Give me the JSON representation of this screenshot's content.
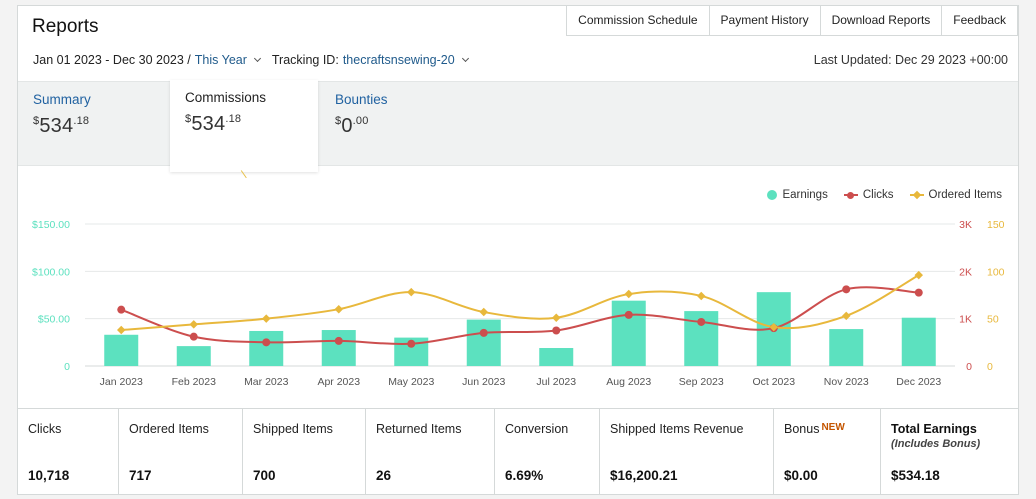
{
  "header": {
    "title": "Reports",
    "tabs": [
      "Commission Schedule",
      "Payment History",
      "Download Reports",
      "Feedback"
    ]
  },
  "filters": {
    "date_range": "Jan 01 2023 - Dec 30 2023 /",
    "period": "This Year",
    "tracking_label": "Tracking ID:",
    "tracking_id": "thecraftsnsewing-20",
    "last_updated": "Last Updated: Dec 29 2023 +00:00"
  },
  "summary": {
    "tabs": [
      {
        "label": "Summary",
        "currency": "$",
        "whole": "534",
        "cents": ".18"
      },
      {
        "label": "Commissions",
        "currency": "$",
        "whole": "534",
        "cents": ".18"
      },
      {
        "label": "Bounties",
        "currency": "$",
        "whole": "0",
        "cents": ".00"
      }
    ]
  },
  "chart_data": {
    "type": "bar",
    "categories": [
      "Jan 2023",
      "Feb 2023",
      "Mar 2023",
      "Apr 2023",
      "May 2023",
      "Jun 2023",
      "Jul 2023",
      "Aug 2023",
      "Sep 2023",
      "Oct 2023",
      "Nov 2023",
      "Dec 2023"
    ],
    "y_left_ticks": [
      "0",
      "$50.00",
      "$100.00",
      "$150.00"
    ],
    "y_mid_ticks": [
      "0",
      "1K",
      "2K",
      "3K"
    ],
    "y_right_ticks": [
      "0",
      "50",
      "100",
      "150"
    ],
    "ylim_earnings": [
      0,
      150
    ],
    "ylim_clicks": [
      0,
      3000
    ],
    "ylim_ordered": [
      0,
      150
    ],
    "legend_placement": "top-right",
    "grid": true,
    "series": [
      {
        "name": "Earnings",
        "type": "bar",
        "color": "#5ce1bf",
        "values": [
          33,
          21,
          37,
          38,
          30,
          49,
          19,
          69,
          58,
          78,
          39,
          51
        ]
      },
      {
        "name": "Clicks",
        "type": "line",
        "color": "#cc4e4e",
        "values": [
          1190,
          620,
          500,
          530,
          470,
          700,
          750,
          1080,
          930,
          800,
          1620,
          1550
        ]
      },
      {
        "name": "Ordered Items",
        "type": "line",
        "color": "#e8b83c",
        "values": [
          38,
          44,
          50,
          60,
          78,
          57,
          51,
          76,
          74,
          41,
          53,
          96
        ]
      }
    ]
  },
  "stats": [
    {
      "label": "Clicks",
      "value": "10,718"
    },
    {
      "label": "Ordered Items",
      "value": "717"
    },
    {
      "label": "Shipped Items",
      "value": "700"
    },
    {
      "label": "Returned Items",
      "value": "26"
    },
    {
      "label": "Conversion",
      "value": "6.69%"
    },
    {
      "label": "Shipped Items Revenue",
      "value": "$16,200.21"
    },
    {
      "label": "Bonus",
      "badge": "NEW",
      "value": "$0.00"
    },
    {
      "label": "Total Earnings",
      "sublabel": "(Includes Bonus)",
      "value": "$534.18"
    }
  ]
}
